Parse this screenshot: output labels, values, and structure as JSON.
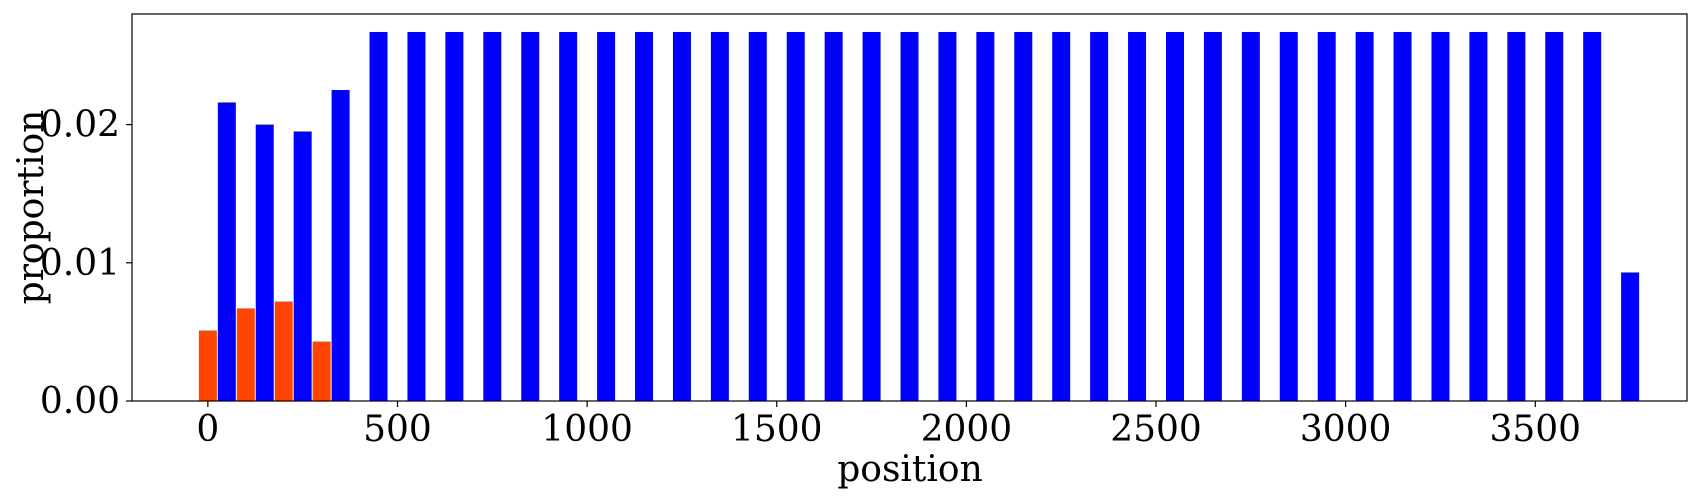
{
  "chart_data": {
    "type": "bar",
    "xlabel": "position",
    "ylabel": "proportion",
    "xlim": [
      -200,
      3900
    ],
    "ylim": [
      0,
      0.028
    ],
    "xticks": [
      0,
      500,
      1000,
      1500,
      2000,
      2500,
      3000,
      3500
    ],
    "xtick_labels": [
      "0",
      "500",
      "1000",
      "1500",
      "2000",
      "2500",
      "3000",
      "3500"
    ],
    "yticks": [
      0,
      0.01,
      0.02
    ],
    "ytick_labels": [
      "0.00",
      "0.01",
      "0.02"
    ],
    "grid": false,
    "series": [
      {
        "color": "#ff4500",
        "x": [
          0,
          100,
          200,
          300
        ],
        "values": [
          0.0051,
          0.0067,
          0.0072,
          0.0043
        ]
      },
      {
        "color": "#0000ff",
        "x": [
          50,
          150,
          250,
          350,
          450,
          550,
          650,
          750,
          850,
          950,
          1050,
          1150,
          1250,
          1350,
          1450,
          1550,
          1650,
          1750,
          1850,
          1950,
          2050,
          2150,
          2250,
          2350,
          2450,
          2550,
          2650,
          2750,
          2850,
          2950,
          3050,
          3150,
          3250,
          3350,
          3450,
          3550,
          3650,
          3750
        ],
        "values": [
          0.0216,
          0.02,
          0.0195,
          0.0225,
          0.0267,
          0.0267,
          0.0267,
          0.0267,
          0.0267,
          0.0267,
          0.0267,
          0.0267,
          0.0267,
          0.0267,
          0.0267,
          0.0267,
          0.0267,
          0.0267,
          0.0267,
          0.0267,
          0.0267,
          0.0267,
          0.0267,
          0.0267,
          0.0267,
          0.0267,
          0.0267,
          0.0267,
          0.0267,
          0.0267,
          0.0267,
          0.0267,
          0.0267,
          0.0267,
          0.0267,
          0.0267,
          0.0267,
          0.0093
        ]
      }
    ]
  }
}
